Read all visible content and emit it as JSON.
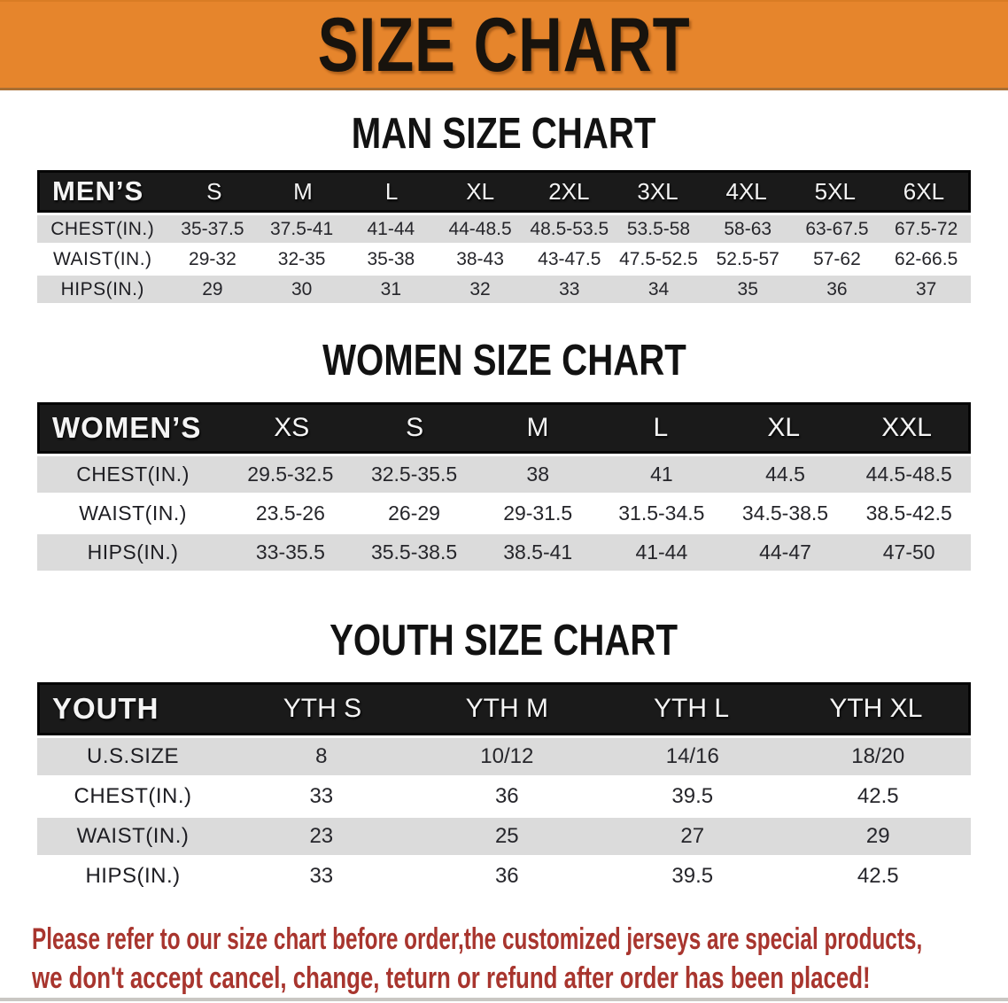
{
  "banner": {
    "title": "SIZE CHART",
    "bg_color": "#E6852C"
  },
  "sections": [
    {
      "key": "mens",
      "title": "MAN SIZE CHART",
      "group_label": "MEN’S",
      "sizes": [
        "S",
        "M",
        "L",
        "XL",
        "2XL",
        "3XL",
        "4XL",
        "5XL",
        "6XL"
      ],
      "rows": [
        {
          "label": "CHEST(IN.)",
          "values": [
            "35-37.5",
            "37.5-41",
            "41-44",
            "44-48.5",
            "48.5-53.5",
            "53.5-58",
            "58-63",
            "63-67.5",
            "67.5-72"
          ]
        },
        {
          "label": "WAIST(IN.)",
          "values": [
            "29-32",
            "32-35",
            "35-38",
            "38-43",
            "43-47.5",
            "47.5-52.5",
            "52.5-57",
            "57-62",
            "62-66.5"
          ]
        },
        {
          "label": "HIPS(IN.)",
          "values": [
            "29",
            "30",
            "31",
            "32",
            "33",
            "34",
            "35",
            "36",
            "37"
          ]
        }
      ]
    },
    {
      "key": "womens",
      "title": "WOMEN SIZE CHART",
      "group_label": "WOMEN’S",
      "sizes": [
        "XS",
        "S",
        "M",
        "L",
        "XL",
        "XXL"
      ],
      "rows": [
        {
          "label": "CHEST(IN.)",
          "values": [
            "29.5-32.5",
            "32.5-35.5",
            "38",
            "41",
            "44.5",
            "44.5-48.5"
          ]
        },
        {
          "label": "WAIST(IN.)",
          "values": [
            "23.5-26",
            "26-29",
            "29-31.5",
            "31.5-34.5",
            "34.5-38.5",
            "38.5-42.5"
          ]
        },
        {
          "label": "HIPS(IN.)",
          "values": [
            "33-35.5",
            "35.5-38.5",
            "38.5-41",
            "41-44",
            "44-47",
            "47-50"
          ]
        }
      ]
    },
    {
      "key": "youth",
      "title": "YOUTH SIZE CHART",
      "group_label": "YOUTH",
      "sizes": [
        "YTH S",
        "YTH M",
        "YTH L",
        "YTH XL"
      ],
      "rows": [
        {
          "label": "U.S.SIZE",
          "values": [
            "8",
            "10/12",
            "14/16",
            "18/20"
          ]
        },
        {
          "label": "CHEST(IN.)",
          "values": [
            "33",
            "36",
            "39.5",
            "42.5"
          ]
        },
        {
          "label": "WAIST(IN.)",
          "values": [
            "23",
            "25",
            "27",
            "29"
          ]
        },
        {
          "label": "HIPS(IN.)",
          "values": [
            "33",
            "36",
            "39.5",
            "42.5"
          ]
        }
      ]
    }
  ],
  "disclaimer": {
    "line1": "Please refer to our size chart before order,the customized jerseys are special products,",
    "line2": "we don't accept cancel, change, teturn or refund after order has been placed!"
  },
  "colors": {
    "banner_orange": "#E6852C",
    "header_bar_black": "#1a1a1a",
    "row_stripe_gray": "#dbdbdb",
    "disclaimer_red": "#A8352E"
  }
}
